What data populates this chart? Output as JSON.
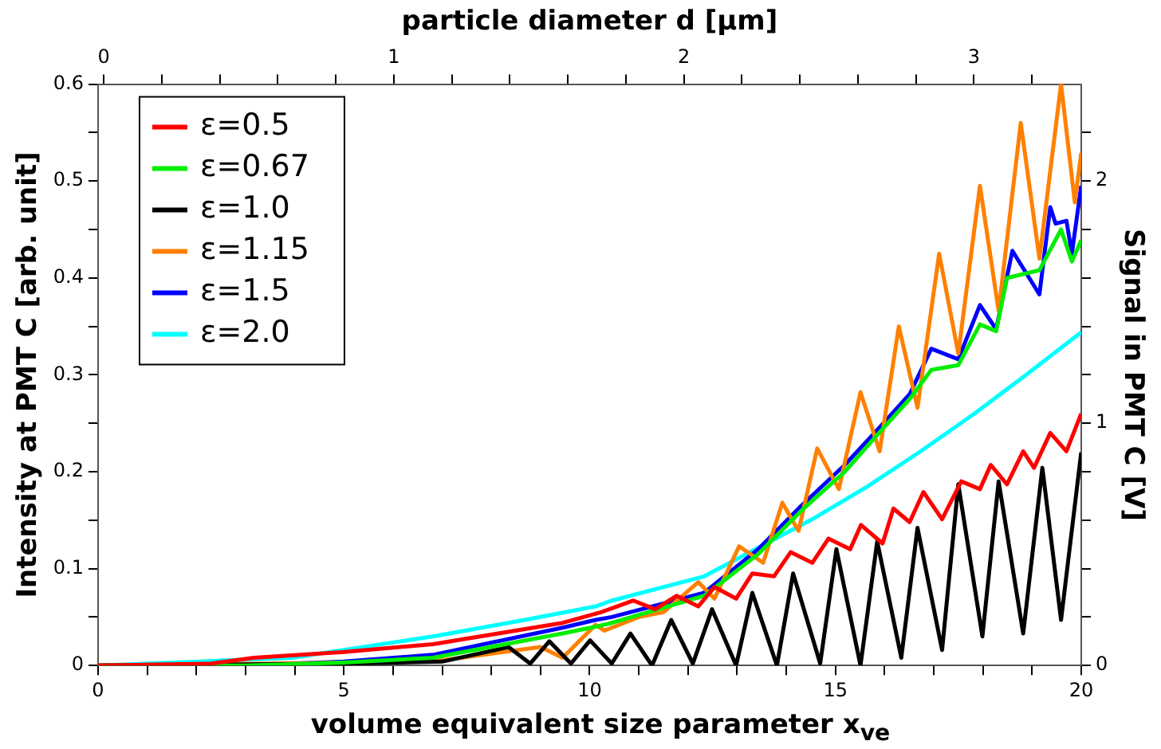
{
  "chart_data": {
    "type": "line",
    "xlabel": "volume equivalent size parameter x$_{ve}$",
    "ylabel": "Intensity at PMT C [arb. unit]",
    "y2label": "Signal in PMT C [V]",
    "x2label": "particle diameter d [μm]",
    "xlim": [
      0,
      20
    ],
    "xticks": [
      0,
      {
        "value": 1,
        "label": null
      },
      {
        "value": 2,
        "label": null
      },
      {
        "value": 3,
        "label": null
      },
      {
        "value": 4,
        "label": null
      },
      5,
      {
        "value": 6,
        "label": null
      },
      {
        "value": 7,
        "label": null
      },
      {
        "value": 8,
        "label": null
      },
      {
        "value": 9,
        "label": null
      },
      10,
      {
        "value": 11,
        "label": null
      },
      {
        "value": 12,
        "label": null
      },
      {
        "value": 13,
        "label": null
      },
      {
        "value": 14,
        "label": null
      },
      15,
      {
        "value": 16,
        "label": null
      },
      {
        "value": 17,
        "label": null
      },
      {
        "value": 18,
        "label": null
      },
      {
        "value": 19,
        "label": null
      },
      20
    ],
    "ylim": [
      0,
      0.6
    ],
    "yticks": [
      0,
      {
        "value": 0.05,
        "label": null
      },
      0.1,
      {
        "value": 0.15,
        "label": null
      },
      0.2,
      {
        "value": 0.25,
        "label": null
      },
      0.3,
      {
        "value": 0.35,
        "label": null
      },
      0.4,
      {
        "value": 0.45,
        "label": null
      },
      0.5,
      {
        "value": 0.55,
        "label": null
      },
      0.6
    ],
    "x2lim": [
      -0.02,
      3.37
    ],
    "x2ticks": [
      0,
      {
        "value": 0.2,
        "label": null
      },
      {
        "value": 0.4,
        "label": null
      },
      {
        "value": 0.6,
        "label": null
      },
      {
        "value": 0.8,
        "label": null
      },
      1,
      {
        "value": 1.2,
        "label": null
      },
      {
        "value": 1.4,
        "label": null
      },
      {
        "value": 1.6,
        "label": null
      },
      {
        "value": 1.8,
        "label": null
      },
      2,
      {
        "value": 2.2,
        "label": null
      },
      {
        "value": 2.4,
        "label": null
      },
      {
        "value": 2.6,
        "label": null
      },
      {
        "value": 2.8,
        "label": null
      },
      3,
      {
        "value": 3.2,
        "label": null
      }
    ],
    "y2lim": [
      0,
      2.4
    ],
    "y2ticks": [
      0,
      {
        "value": 0.2,
        "label": null
      },
      {
        "value": 0.4,
        "label": null
      },
      {
        "value": 0.6,
        "label": null
      },
      {
        "value": 0.8,
        "label": null
      },
      1,
      {
        "value": 1.2,
        "label": null
      },
      {
        "value": 1.4,
        "label": null
      },
      {
        "value": 1.6,
        "label": null
      },
      {
        "value": 1.8,
        "label": null
      },
      2,
      {
        "value": 2.2,
        "label": null
      }
    ],
    "grid": false,
    "legend": "top left",
    "series": [
      {
        "name": "ε=0.5",
        "color": "#ff0000",
        "x": [
          0,
          2.3,
          3.17,
          5,
          6.81,
          9.45,
          10.23,
          10.89,
          11.33,
          11.77,
          12.21,
          12.54,
          12.98,
          13.31,
          13.75,
          14.09,
          14.53,
          14.86,
          15.3,
          15.52,
          15.96,
          16.18,
          16.51,
          16.79,
          17.17,
          17.56,
          17.94,
          18.16,
          18.49,
          18.82,
          19.04,
          19.37,
          19.7,
          20
        ],
        "values": [
          0,
          0.002,
          0.008,
          0.014,
          0.022,
          0.044,
          0.055,
          0.067,
          0.058,
          0.072,
          0.061,
          0.081,
          0.069,
          0.095,
          0.092,
          0.117,
          0.106,
          0.131,
          0.12,
          0.145,
          0.126,
          0.162,
          0.148,
          0.179,
          0.151,
          0.19,
          0.182,
          0.207,
          0.187,
          0.221,
          0.204,
          0.24,
          0.221,
          0.26
        ]
      },
      {
        "name": "ε=0.67",
        "color": "#00ee00",
        "x": [
          0,
          3,
          5,
          6.81,
          9.45,
          10.12,
          10.45,
          12.33,
          13.43,
          14.31,
          15.19,
          15.85,
          16.51,
          16.95,
          17.5,
          17.94,
          18.27,
          18.49,
          19.15,
          19.59,
          19.81,
          20
        ],
        "values": [
          0,
          0,
          0.003,
          0.008,
          0.033,
          0.04,
          0.044,
          0.072,
          0.115,
          0.16,
          0.2,
          0.238,
          0.275,
          0.305,
          0.31,
          0.352,
          0.345,
          0.4,
          0.408,
          0.45,
          0.417,
          0.439
        ]
      },
      {
        "name": "ε=1.0",
        "color": "#000000",
        "x": [
          0,
          5,
          7,
          8.35,
          8.79,
          9.18,
          9.62,
          10.01,
          10.45,
          10.83,
          11.27,
          11.66,
          12.1,
          12.49,
          12.98,
          13.31,
          13.81,
          14.14,
          14.69,
          15.02,
          15.51,
          15.85,
          16.34,
          16.67,
          17.17,
          17.5,
          17.99,
          18.32,
          18.82,
          19.21,
          19.59,
          20
        ],
        "values": [
          0,
          0.002,
          0.004,
          0.019,
          0.002,
          0.025,
          0.002,
          0.026,
          0.002,
          0.033,
          0,
          0.047,
          0.002,
          0.058,
          0,
          0.075,
          0,
          0.095,
          0.002,
          0.12,
          0,
          0.128,
          0.008,
          0.142,
          0.016,
          0.187,
          0.03,
          0.19,
          0.033,
          0.204,
          0.047,
          0.22
        ]
      },
      {
        "name": "ε=1.15",
        "color": "#ff8000",
        "x": [
          0,
          6.81,
          9.0,
          9.45,
          10.12,
          10.3,
          11.0,
          11.5,
          12.21,
          12.54,
          13.04,
          13.53,
          13.92,
          14.25,
          14.63,
          15.07,
          15.51,
          15.9,
          16.29,
          16.67,
          17.11,
          17.5,
          17.94,
          18.32,
          18.77,
          19.15,
          19.59,
          19.87,
          20
        ],
        "values": [
          0,
          0.004,
          0.019,
          0.008,
          0.042,
          0.036,
          0.05,
          0.055,
          0.086,
          0.069,
          0.123,
          0.106,
          0.168,
          0.139,
          0.224,
          0.182,
          0.282,
          0.221,
          0.35,
          0.266,
          0.425,
          0.322,
          0.495,
          0.366,
          0.56,
          0.42,
          0.6,
          0.478,
          0.529
        ]
      },
      {
        "name": "ε=1.5",
        "color": "#0000ff",
        "x": [
          0,
          3,
          5,
          6.81,
          9.45,
          10.12,
          10.45,
          12.33,
          13.43,
          14.31,
          15.19,
          15.85,
          16.51,
          16.95,
          17.5,
          17.94,
          18.27,
          18.6,
          19.15,
          19.37,
          19.48,
          19.7,
          19.81,
          20
        ],
        "values": [
          0,
          0,
          0.004,
          0.011,
          0.039,
          0.047,
          0.05,
          0.075,
          0.12,
          0.165,
          0.207,
          0.243,
          0.28,
          0.327,
          0.316,
          0.372,
          0.347,
          0.428,
          0.383,
          0.473,
          0.456,
          0.459,
          0.425,
          0.495
        ]
      },
      {
        "name": "ε=2.0",
        "color": "#00ffff",
        "x": [
          0,
          3.95,
          6.81,
          8.68,
          10.12,
          10.45,
          12.33,
          14.53,
          15.63,
          16.73,
          17.83,
          18.93,
          20
        ],
        "values": [
          0,
          0.008,
          0.03,
          0.047,
          0.061,
          0.067,
          0.092,
          0.151,
          0.184,
          0.221,
          0.26,
          0.302,
          0.344
        ]
      }
    ]
  }
}
